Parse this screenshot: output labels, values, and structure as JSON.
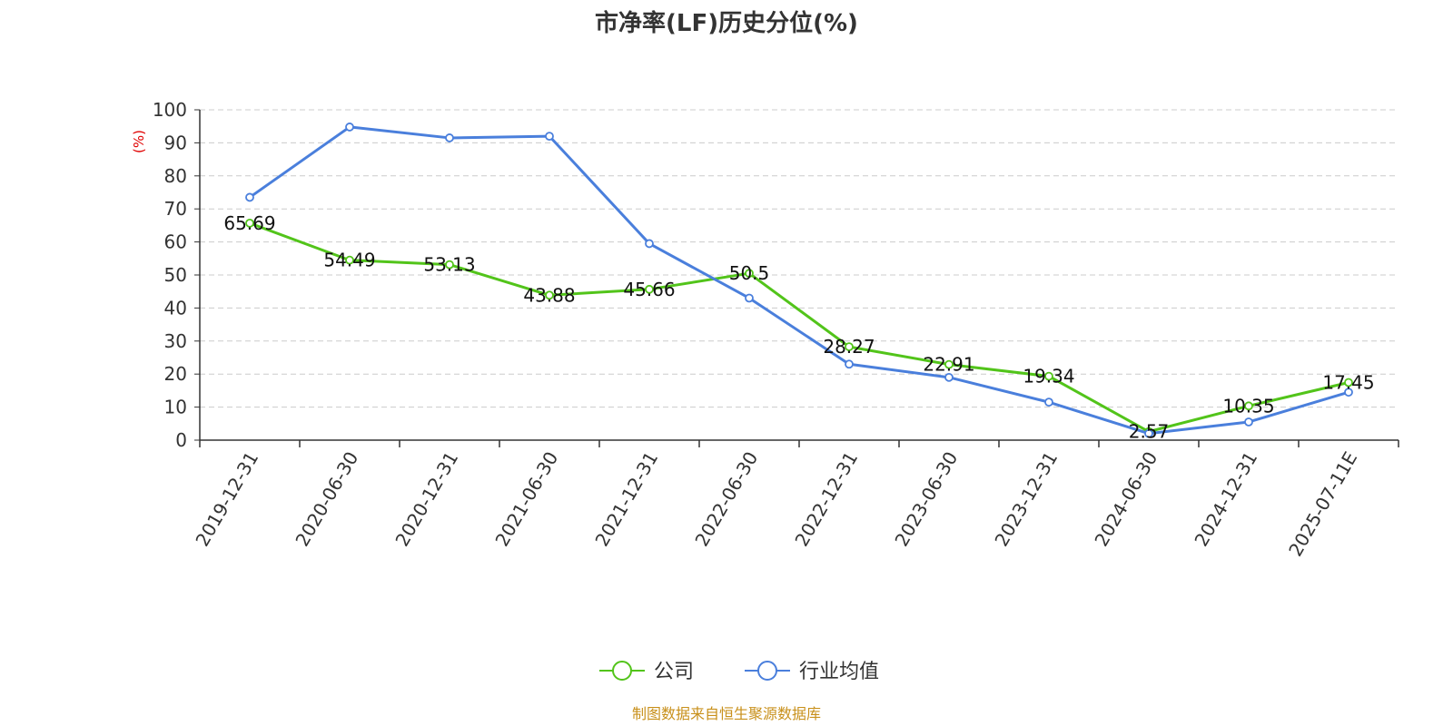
{
  "chart_data": {
    "type": "line",
    "title": "市净率(LF)历史分位(%)",
    "ylabel": "(%)",
    "ylim": [
      0,
      100
    ],
    "yticks": [
      0,
      10,
      20,
      30,
      40,
      50,
      60,
      70,
      80,
      90,
      100
    ],
    "grid": true,
    "legend_position": "bottom",
    "categories": [
      "2019-12-31",
      "2020-06-30",
      "2020-12-31",
      "2021-06-30",
      "2021-12-31",
      "2022-06-30",
      "2022-12-31",
      "2023-06-30",
      "2023-12-31",
      "2024-06-30",
      "2024-12-31",
      "2025-07-11E"
    ],
    "series": [
      {
        "name": "公司",
        "color": "#52c41a",
        "values": [
          65.69,
          54.49,
          53.13,
          43.88,
          45.66,
          50.5,
          28.27,
          22.91,
          19.34,
          2.57,
          10.35,
          17.45
        ],
        "labels": [
          "65.69",
          "54.49",
          "53.13",
          "43.88",
          "45.66",
          "50.5",
          "28.27",
          "22.91",
          "19.34",
          "2.57",
          "10.35",
          "17.45"
        ]
      },
      {
        "name": "行业均值",
        "color": "#4a7fdc",
        "values": [
          73.5,
          94.8,
          91.5,
          92.0,
          59.5,
          43.0,
          23.0,
          19.0,
          11.5,
          2.0,
          5.5,
          14.5
        ]
      }
    ]
  },
  "source_text": "制图数据来自恒生聚源数据库"
}
